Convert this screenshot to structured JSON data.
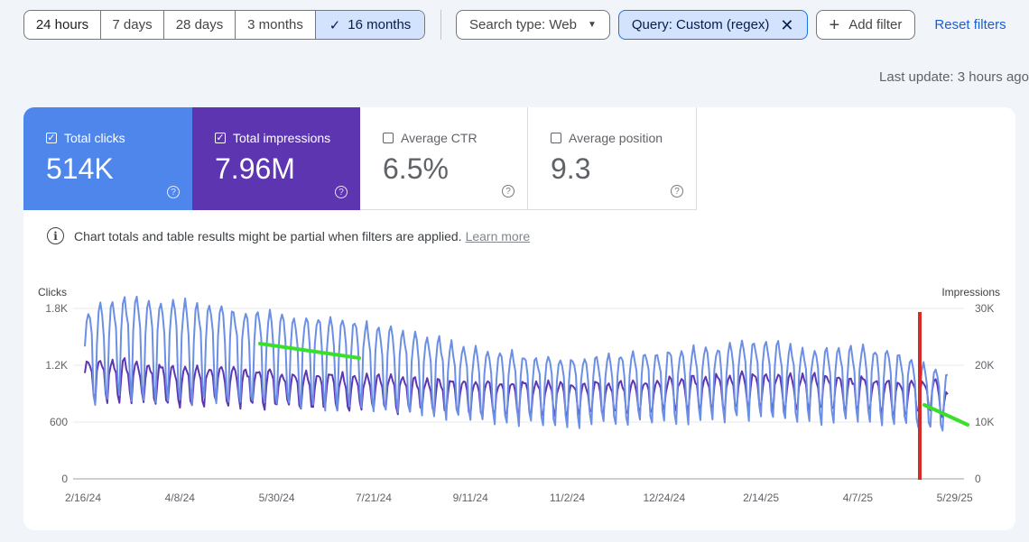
{
  "date_range": {
    "options": [
      "24 hours",
      "7 days",
      "28 days",
      "3 months",
      "16 months"
    ],
    "selected": "16 months"
  },
  "filters": {
    "search_type": "Search type: Web",
    "query": "Query: Custom (regex)",
    "add_filter": "Add filter",
    "reset": "Reset filters"
  },
  "last_update": "Last update: 3 hours ago",
  "metrics": {
    "clicks": {
      "label": "Total clicks",
      "value": "514K",
      "checked": true,
      "color": "#4f86ec"
    },
    "impressions": {
      "label": "Total impressions",
      "value": "7.96M",
      "checked": true,
      "color": "#5e35b1"
    },
    "ctr": {
      "label": "Average CTR",
      "value": "6.5%",
      "checked": false
    },
    "position": {
      "label": "Average position",
      "value": "9.3",
      "checked": false
    }
  },
  "notice": {
    "text": "Chart totals and table results might be partial when filters are applied.",
    "link": "Learn more"
  },
  "chart_data": {
    "type": "line",
    "ylabel_left": "Clicks",
    "ylabel_right": "Impressions",
    "left_ticks": [
      "1.8K",
      "1.2K",
      "600",
      "0"
    ],
    "right_ticks": [
      "30K",
      "20K",
      "10K",
      "0"
    ],
    "ylim_left": [
      0,
      1800
    ],
    "ylim_right": [
      0,
      30000
    ],
    "x_ticks": [
      "2/16/24",
      "4/8/24",
      "5/30/24",
      "7/21/24",
      "9/11/24",
      "11/2/24",
      "12/24/24",
      "2/14/25",
      "4/7/25",
      "5/29/25"
    ],
    "grid": true,
    "series": [
      {
        "color": "#6b8fe4",
        "axis": "right",
        "trend_weekly": [
          [
            0,
            22000
          ],
          [
            4,
            24500
          ],
          [
            8,
            23500
          ],
          [
            12,
            22500
          ],
          [
            16,
            22000
          ],
          [
            20,
            21500
          ],
          [
            24,
            20500
          ],
          [
            28,
            19000
          ],
          [
            32,
            17500
          ],
          [
            36,
            16500
          ],
          [
            40,
            16000
          ],
          [
            44,
            16500
          ],
          [
            48,
            17000
          ],
          [
            52,
            17500
          ],
          [
            56,
            18500
          ],
          [
            60,
            17000
          ],
          [
            64,
            17500
          ],
          [
            68,
            16500
          ],
          [
            70,
            14500
          ],
          [
            72,
            13500
          ]
        ]
      },
      {
        "color": "#5e35b1",
        "axis": "left",
        "trend_weekly": [
          [
            0,
            1080
          ],
          [
            4,
            1050
          ],
          [
            8,
            1000
          ],
          [
            12,
            1000
          ],
          [
            16,
            970
          ],
          [
            20,
            950
          ],
          [
            24,
            920
          ],
          [
            28,
            900
          ],
          [
            32,
            880
          ],
          [
            36,
            870
          ],
          [
            40,
            860
          ],
          [
            44,
            880
          ],
          [
            48,
            900
          ],
          [
            52,
            940
          ],
          [
            56,
            950
          ],
          [
            60,
            930
          ],
          [
            64,
            920
          ],
          [
            68,
            870
          ],
          [
            70,
            900
          ],
          [
            72,
            700
          ]
        ]
      }
    ],
    "annotations": [
      {
        "type": "trendline",
        "color": "#39e02b",
        "from": [
          "5/30/24",
          1400
        ],
        "to": [
          "7/21/24",
          1290
        ]
      },
      {
        "type": "trendline",
        "color": "#39e02b",
        "from": [
          "5/29/25",
          760
        ],
        "to": [
          "end",
          560
        ]
      },
      {
        "type": "vertical_marker",
        "color": "#d62c28",
        "at": "5/29/25"
      }
    ]
  }
}
